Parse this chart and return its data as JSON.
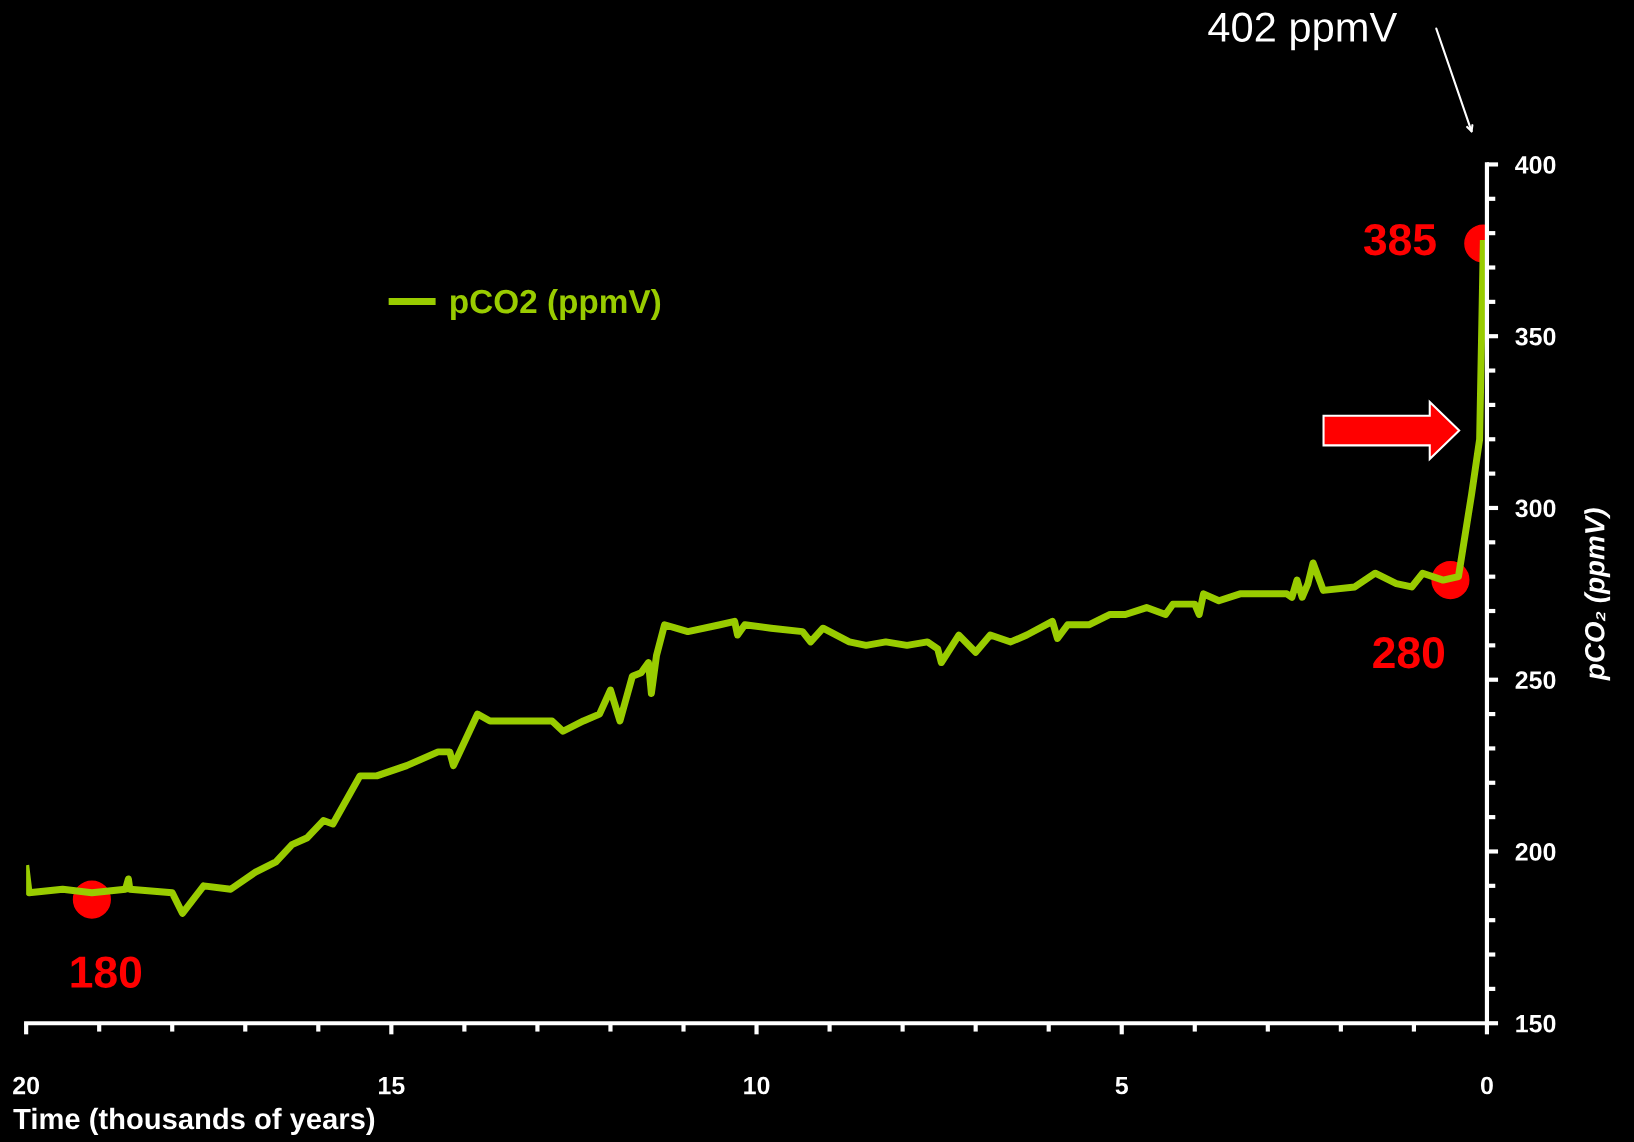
{
  "chart_data": {
    "type": "line",
    "xlabel": "Time (thousands of years)",
    "ylabel": "pCO₂ (ppmV)",
    "xlim": [
      20,
      0
    ],
    "xticks": [
      20,
      15,
      10,
      5,
      0
    ],
    "ylim": [
      150,
      400
    ],
    "yticks": [
      150,
      200,
      250,
      300,
      350,
      400
    ],
    "grid": false,
    "legend": "top left",
    "marker": "none",
    "line_style": "solid",
    "series": [
      {
        "name": "pCO2 (ppmV)",
        "color": "#99cc00",
        "x": [
          20,
          19.96,
          19.5,
          19.1,
          18.64,
          18.6,
          18.58,
          18.0,
          17.86,
          17.57,
          17.2,
          16.86,
          16.58,
          16.36,
          16.15,
          15.93,
          15.8,
          15.43,
          15.2,
          14.79,
          14.36,
          14.2,
          14.15,
          13.82,
          13.65,
          13.5,
          13.2,
          12.8,
          12.65,
          12.37,
          12.15,
          12.0,
          11.87,
          11.7,
          11.58,
          11.48,
          11.44,
          11.37,
          11.26,
          10.94,
          10.5,
          10.3,
          10.26,
          10.16,
          9.8,
          9.37,
          9.26,
          9.09,
          8.73,
          8.5,
          8.23,
          7.94,
          7.66,
          7.52,
          7.47,
          7.23,
          7.0,
          6.8,
          6.52,
          6.3,
          5.95,
          5.88,
          5.74,
          5.45,
          5.16,
          4.95,
          4.66,
          4.4,
          4.3,
          4.0,
          3.94,
          3.88,
          3.67,
          3.38,
          3.03,
          2.74,
          2.67,
          2.6,
          2.53,
          2.45,
          2.38,
          2.24,
          1.81,
          1.53,
          1.24,
          1.03,
          0.88,
          0.6,
          0.39,
          0.21,
          0.1,
          0.07,
          0.05
        ],
        "values": [
          195,
          188,
          189,
          188,
          189,
          192,
          189,
          188,
          182,
          190,
          189,
          194,
          197,
          202,
          204,
          209,
          208,
          222,
          222,
          225,
          229,
          229,
          225,
          240,
          238,
          238,
          238,
          238,
          235,
          238,
          240,
          247,
          238,
          251,
          252,
          255,
          246,
          257,
          266,
          264,
          266,
          267,
          263,
          266,
          265,
          264,
          261,
          265,
          261,
          260,
          261,
          260,
          261,
          259,
          255,
          263,
          258,
          263,
          261,
          263,
          267,
          262,
          266,
          266,
          269,
          269,
          271,
          269,
          272,
          272,
          269,
          275,
          273,
          275,
          275,
          275,
          274,
          279,
          274,
          278,
          284,
          276,
          277,
          281,
          278,
          277,
          281,
          279,
          280,
          304,
          320,
          354,
          377
        ]
      },
      {
        "color": "#ff0000",
        "type": "scatter",
        "marker": "circle",
        "x": [
          19.1,
          0.5,
          0.05
        ],
        "values": [
          186,
          279,
          377
        ]
      }
    ],
    "annotations": [
      {
        "text": "180",
        "x": 19.1,
        "y": 186
      },
      {
        "text": "280",
        "x": 0.5,
        "y": 279
      },
      {
        "text": "385",
        "x": 0.05,
        "y": 377
      },
      "402 ppmV"
    ]
  }
}
